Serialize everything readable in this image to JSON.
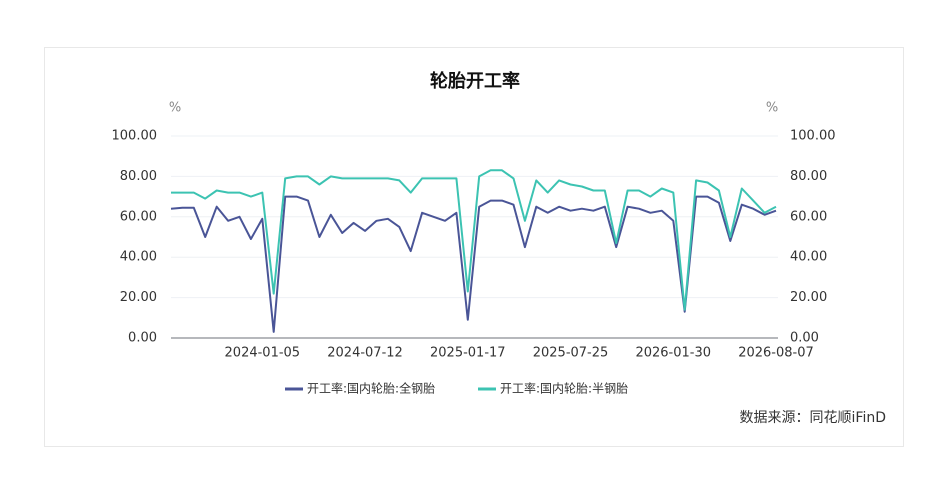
{
  "chart_data": {
    "type": "line",
    "title": "轮胎开工率",
    "y_unit": "%",
    "y2_unit": "%",
    "source": "数据来源：同花顺iFinD",
    "categories": [
      null,
      null,
      null,
      null,
      null,
      null,
      null,
      null,
      "2024-01-05",
      null,
      null,
      null,
      null,
      null,
      null,
      null,
      null,
      "2024-07-12",
      null,
      null,
      null,
      null,
      null,
      null,
      null,
      null,
      "2025-01-17",
      null,
      null,
      null,
      null,
      null,
      null,
      null,
      null,
      "2025-07-25",
      null,
      null,
      null,
      null,
      null,
      null,
      null,
      null,
      "2026-01-30",
      null,
      null,
      null,
      null,
      null,
      null,
      null,
      null,
      "2026-08-07"
    ],
    "series": [
      {
        "name": "开工率:国内轮胎:全钢胎",
        "color": "#4a5597",
        "values": [
          64,
          64.5,
          64.5,
          50,
          65,
          58,
          60,
          49,
          59,
          3,
          70,
          70,
          68,
          50,
          61,
          52,
          57,
          53,
          58,
          59,
          55,
          43,
          62,
          60,
          58,
          62,
          9,
          65,
          68,
          68,
          66,
          45,
          65,
          62,
          65,
          63,
          64,
          63,
          65,
          45,
          65,
          64,
          62,
          63,
          58,
          13,
          70,
          70,
          67,
          48,
          66,
          64,
          61,
          63
        ]
      },
      {
        "name": "开工率:国内轮胎:半钢胎",
        "color": "#3cc3b2",
        "axis": "y2",
        "values": [
          72,
          72,
          72,
          69,
          73,
          72,
          72,
          70,
          72,
          22,
          79,
          80,
          80,
          76,
          80,
          79,
          79,
          79,
          79,
          79,
          78,
          72,
          79,
          79,
          79,
          79,
          23,
          80,
          83,
          83,
          79,
          58,
          78,
          72,
          78,
          76,
          75,
          73,
          73,
          47,
          73,
          73,
          70,
          74,
          72,
          14,
          78,
          77,
          73,
          50,
          74,
          68,
          62,
          65
        ]
      }
    ],
    "ylim": [
      0,
      100
    ],
    "yticks": [
      {
        "value": 0,
        "label": "0.00"
      },
      {
        "value": 20,
        "label": "20.00"
      },
      {
        "value": 40,
        "label": "40.00"
      },
      {
        "value": 60,
        "label": "60.00"
      },
      {
        "value": 80,
        "label": "80.00"
      },
      {
        "value": 100,
        "label": "100.00"
      }
    ],
    "y2lim": [
      0,
      100
    ],
    "y2ticks": [
      {
        "value": 0,
        "label": "0.00"
      },
      {
        "value": 20,
        "label": "20.00"
      },
      {
        "value": 40,
        "label": "40.00"
      },
      {
        "value": 60,
        "label": "60.00"
      },
      {
        "value": 80,
        "label": "80.00"
      },
      {
        "value": 100,
        "label": "100.00"
      }
    ],
    "grid": true
  }
}
